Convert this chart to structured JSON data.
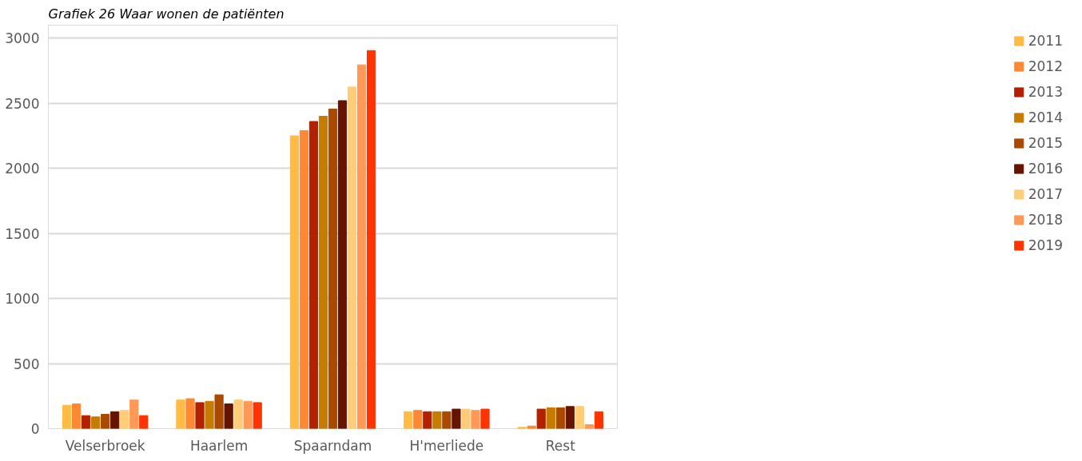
{
  "chart_data": {
    "type": "bar",
    "title": "Grafiek 26 Waar wonen de patiënten",
    "categories": [
      "Velserbroek",
      "Haarlem",
      "Spaarndam",
      "H'merliede",
      "Rest"
    ],
    "series": [
      {
        "name": "2011",
        "color": "#ffbb44",
        "values": [
          180,
          220,
          2250,
          130,
          10
        ]
      },
      {
        "name": "2012",
        "color": "#ff8833",
        "values": [
          190,
          230,
          2290,
          140,
          20
        ]
      },
      {
        "name": "2013",
        "color": "#b22200",
        "values": [
          100,
          200,
          2360,
          130,
          150
        ]
      },
      {
        "name": "2014",
        "color": "#c67c00",
        "values": [
          90,
          210,
          2400,
          130,
          160
        ]
      },
      {
        "name": "2015",
        "color": "#aa4a00",
        "values": [
          110,
          260,
          2455,
          130,
          160
        ]
      },
      {
        "name": "2016",
        "color": "#661400",
        "values": [
          130,
          190,
          2520,
          150,
          170
        ]
      },
      {
        "name": "2017",
        "color": "#ffcc77",
        "values": [
          140,
          220,
          2625,
          150,
          170
        ]
      },
      {
        "name": "2018",
        "color": "#ff9955",
        "values": [
          220,
          210,
          2795,
          140,
          30
        ]
      },
      {
        "name": "2019",
        "color": "#ff3300",
        "values": [
          100,
          200,
          2905,
          150,
          130
        ]
      }
    ],
    "ylim": [
      0,
      3100
    ],
    "yticks": [
      0,
      500,
      1000,
      1500,
      2000,
      2500,
      3000
    ],
    "grid": "y",
    "legend": "right"
  }
}
